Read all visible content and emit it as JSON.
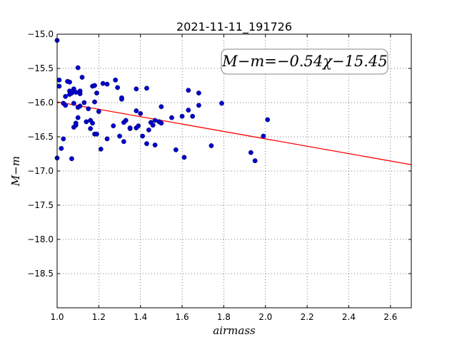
{
  "chart_data": {
    "type": "scatter",
    "title": "2021-11-11_191726",
    "xlabel": "airmass",
    "ylabel": "M−m",
    "xlim": [
      1.0,
      2.7
    ],
    "ylim": [
      -15.0,
      -19.0
    ],
    "y_inverted": true,
    "grid": true,
    "x_ticks": [
      1.0,
      1.2,
      1.4,
      1.6,
      1.8,
      2.0,
      2.2,
      2.4,
      2.6
    ],
    "x_tick_labels": [
      "1.0",
      "1.2",
      "1.4",
      "1.6",
      "1.8",
      "2.0",
      "2.2",
      "2.4",
      "2.6"
    ],
    "y_ticks": [
      -15.0,
      -15.5,
      -16.0,
      -16.5,
      -17.0,
      -17.5,
      -18.0,
      -18.5
    ],
    "y_tick_labels": [
      "−15.0",
      "−15.5",
      "−16.0",
      "−16.5",
      "−17.0",
      "−17.5",
      "−18.0",
      "−18.5"
    ],
    "annotation": "M−m=−0.54χ−15.45",
    "fit": {
      "slope": -0.54,
      "intercept": -15.45,
      "color": "#ff0000",
      "x_range": [
        1.0,
        2.7
      ]
    },
    "marker_color": "#0000cc",
    "points": [
      [
        1.0,
        -15.09
      ],
      [
        1.0,
        -16.81
      ],
      [
        1.01,
        -15.67
      ],
      [
        1.01,
        -15.76
      ],
      [
        1.02,
        -16.67
      ],
      [
        1.03,
        -16.53
      ],
      [
        1.03,
        -16.01
      ],
      [
        1.04,
        -15.91
      ],
      [
        1.04,
        -16.04
      ],
      [
        1.05,
        -15.69
      ],
      [
        1.06,
        -15.7
      ],
      [
        1.06,
        -15.83
      ],
      [
        1.06,
        -15.88
      ],
      [
        1.07,
        -15.86
      ],
      [
        1.07,
        -16.82
      ],
      [
        1.08,
        -15.8
      ],
      [
        1.08,
        -16.01
      ],
      [
        1.08,
        -16.36
      ],
      [
        1.09,
        -15.85
      ],
      [
        1.09,
        -16.3
      ],
      [
        1.09,
        -16.33
      ],
      [
        1.1,
        -15.49
      ],
      [
        1.1,
        -16.07
      ],
      [
        1.1,
        -16.22
      ],
      [
        1.11,
        -15.83
      ],
      [
        1.11,
        -15.87
      ],
      [
        1.11,
        -16.05
      ],
      [
        1.12,
        -15.63
      ],
      [
        1.13,
        -16.0
      ],
      [
        1.14,
        -16.28
      ],
      [
        1.15,
        -16.09
      ],
      [
        1.16,
        -16.26
      ],
      [
        1.16,
        -16.38
      ],
      [
        1.17,
        -15.76
      ],
      [
        1.17,
        -16.3
      ],
      [
        1.18,
        -15.75
      ],
      [
        1.18,
        -15.99
      ],
      [
        1.18,
        -16.46
      ],
      [
        1.19,
        -15.86
      ],
      [
        1.19,
        -16.46
      ],
      [
        1.2,
        -16.13
      ],
      [
        1.21,
        -16.68
      ],
      [
        1.22,
        -15.72
      ],
      [
        1.24,
        -15.73
      ],
      [
        1.24,
        -16.53
      ],
      [
        1.27,
        -16.34
      ],
      [
        1.28,
        -15.67
      ],
      [
        1.29,
        -15.78
      ],
      [
        1.3,
        -16.49
      ],
      [
        1.31,
        -15.93
      ],
      [
        1.31,
        -15.95
      ],
      [
        1.32,
        -16.29
      ],
      [
        1.32,
        -16.57
      ],
      [
        1.33,
        -16.26
      ],
      [
        1.35,
        -16.38
      ],
      [
        1.35,
        -16.37
      ],
      [
        1.38,
        -15.8
      ],
      [
        1.38,
        -16.12
      ],
      [
        1.38,
        -16.37
      ],
      [
        1.39,
        -16.34
      ],
      [
        1.4,
        -16.16
      ],
      [
        1.41,
        -16.49
      ],
      [
        1.43,
        -15.79
      ],
      [
        1.43,
        -16.6
      ],
      [
        1.44,
        -16.4
      ],
      [
        1.45,
        -16.29
      ],
      [
        1.46,
        -16.33
      ],
      [
        1.47,
        -16.26
      ],
      [
        1.47,
        -16.62
      ],
      [
        1.49,
        -16.28
      ],
      [
        1.5,
        -16.06
      ],
      [
        1.5,
        -16.3
      ],
      [
        1.55,
        -16.22
      ],
      [
        1.57,
        -16.69
      ],
      [
        1.6,
        -16.2
      ],
      [
        1.61,
        -16.8
      ],
      [
        1.63,
        -15.82
      ],
      [
        1.63,
        -16.11
      ],
      [
        1.65,
        -16.2
      ],
      [
        1.68,
        -16.04
      ],
      [
        1.68,
        -15.86
      ],
      [
        1.74,
        -16.63
      ],
      [
        1.79,
        -16.01
      ],
      [
        1.93,
        -16.73
      ],
      [
        1.95,
        -16.85
      ],
      [
        1.99,
        -16.49
      ],
      [
        2.01,
        -16.25
      ]
    ]
  }
}
